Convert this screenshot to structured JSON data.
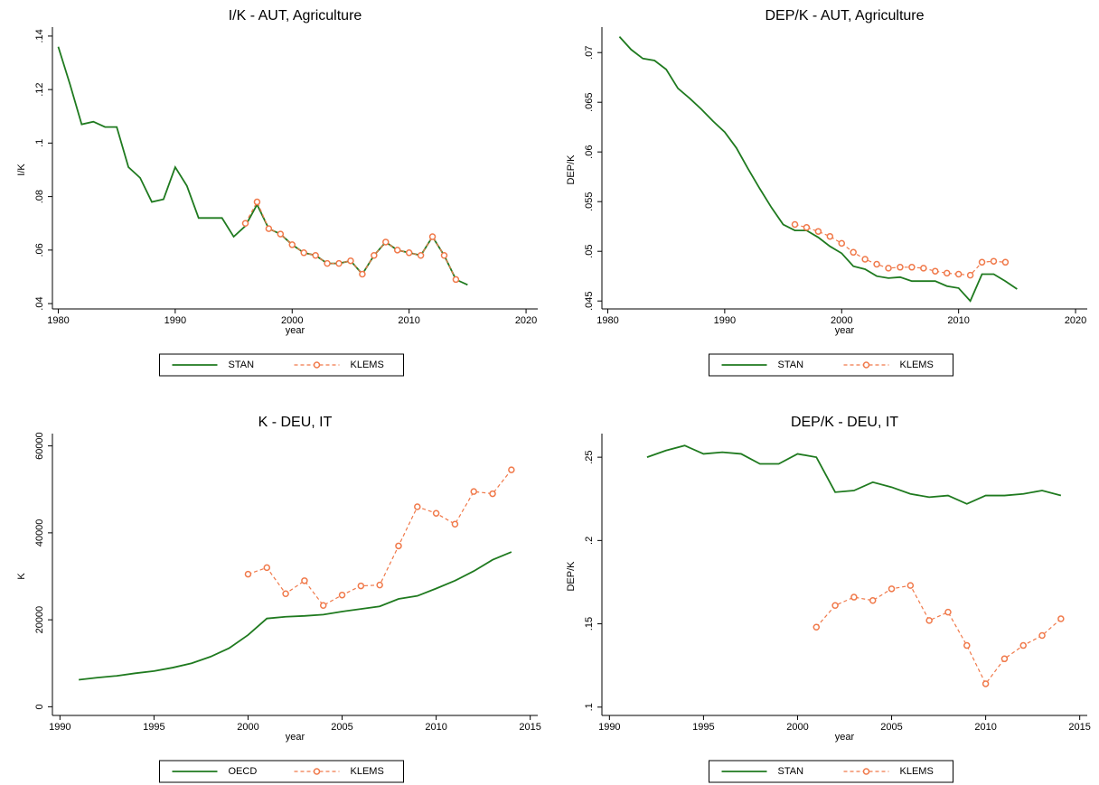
{
  "chart_data": [
    {
      "type": "line",
      "title": "I/K - AUT, Agriculture",
      "xlabel": "year",
      "ylabel": "I/K",
      "x": [
        1980,
        1981,
        1982,
        1983,
        1984,
        1985,
        1986,
        1987,
        1988,
        1989,
        1990,
        1991,
        1992,
        1993,
        1994,
        1995,
        1996,
        1997,
        1998,
        1999,
        2000,
        2001,
        2002,
        2003,
        2004,
        2005,
        2006,
        2007,
        2008,
        2009,
        2010,
        2011,
        2012,
        2013,
        2014,
        2015
      ],
      "series": [
        {
          "name": "STAN",
          "color": "#1f7a1f",
          "values": [
            0.136,
            0.122,
            0.107,
            0.108,
            0.106,
            0.106,
            0.091,
            0.087,
            0.078,
            0.079,
            0.091,
            0.084,
            0.072,
            0.072,
            0.072,
            0.065,
            0.069,
            0.077,
            0.068,
            0.066,
            0.062,
            0.059,
            0.058,
            0.055,
            0.055,
            0.056,
            0.051,
            0.058,
            0.063,
            0.06,
            0.059,
            0.058,
            0.065,
            0.058,
            0.049,
            0.047
          ]
        },
        {
          "name": "KLEMS",
          "color": "#f0794a",
          "values": [
            null,
            null,
            null,
            null,
            null,
            null,
            null,
            null,
            null,
            null,
            null,
            null,
            null,
            null,
            null,
            null,
            0.07,
            0.078,
            0.068,
            0.066,
            0.062,
            0.059,
            0.058,
            0.055,
            0.055,
            0.056,
            0.051,
            0.058,
            0.063,
            0.06,
            0.059,
            0.058,
            0.065,
            0.058,
            0.049,
            null
          ]
        }
      ],
      "xlim": [
        1979.5,
        2021
      ],
      "xticks": [
        1980,
        1990,
        2000,
        2010,
        2020
      ],
      "ylim": [
        0.038,
        0.142
      ],
      "yticks": [
        {
          "value": 0.04,
          "label": ".04"
        },
        {
          "value": 0.06,
          "label": ".06"
        },
        {
          "value": 0.08,
          "label": ".08"
        },
        {
          "value": 0.1,
          "label": ".1"
        },
        {
          "value": 0.12,
          "label": ".12"
        },
        {
          "value": 0.14,
          "label": ".14"
        }
      ]
    },
    {
      "type": "line",
      "title": "DEP/K - AUT, Agriculture",
      "xlabel": "year",
      "ylabel": "DEP/K",
      "x": [
        1981,
        1982,
        1983,
        1984,
        1985,
        1986,
        1987,
        1988,
        1989,
        1990,
        1991,
        1992,
        1993,
        1994,
        1995,
        1996,
        1997,
        1998,
        1999,
        2000,
        2001,
        2002,
        2003,
        2004,
        2005,
        2006,
        2007,
        2008,
        2009,
        2010,
        2011,
        2012,
        2013,
        2014,
        2015
      ],
      "series": [
        {
          "name": "STAN",
          "color": "#1f7a1f",
          "values": [
            0.0716,
            0.0703,
            0.0694,
            0.0692,
            0.0683,
            0.0664,
            0.0654,
            0.0643,
            0.0631,
            0.062,
            0.0604,
            0.0583,
            0.0563,
            0.0544,
            0.0527,
            0.0521,
            0.0521,
            0.0514,
            0.0505,
            0.0498,
            0.0485,
            0.0482,
            0.0475,
            0.0473,
            0.0474,
            0.047,
            0.047,
            0.047,
            0.0465,
            0.0463,
            0.045,
            0.0477,
            0.0477,
            0.047,
            0.0462
          ]
        },
        {
          "name": "KLEMS",
          "color": "#f0794a",
          "values": [
            null,
            null,
            null,
            null,
            null,
            null,
            null,
            null,
            null,
            null,
            null,
            null,
            null,
            null,
            null,
            0.0527,
            0.0524,
            0.052,
            0.0515,
            0.0508,
            0.0499,
            0.0492,
            0.0487,
            0.0483,
            0.0484,
            0.0484,
            0.0483,
            0.048,
            0.0478,
            0.0477,
            0.0476,
            0.0489,
            0.049,
            0.0489,
            null
          ]
        }
      ],
      "xlim": [
        1979.5,
        2021
      ],
      "xticks": [
        1980,
        1990,
        2000,
        2010,
        2020
      ],
      "ylim": [
        0.0442,
        0.0722
      ],
      "yticks": [
        {
          "value": 0.045,
          "label": ".045"
        },
        {
          "value": 0.05,
          "label": ".05"
        },
        {
          "value": 0.055,
          "label": ".055"
        },
        {
          "value": 0.06,
          "label": ".06"
        },
        {
          "value": 0.065,
          "label": ".065"
        },
        {
          "value": 0.07,
          "label": ".07"
        }
      ]
    },
    {
      "type": "line",
      "title": "K - DEU, IT",
      "xlabel": "year",
      "ylabel": "K",
      "x": [
        1991,
        1992,
        1993,
        1994,
        1995,
        1996,
        1997,
        1998,
        1999,
        2000,
        2001,
        2002,
        2003,
        2004,
        2005,
        2006,
        2007,
        2008,
        2009,
        2010,
        2011,
        2012,
        2013,
        2014
      ],
      "series": [
        {
          "name": "OECD",
          "color": "#1f7a1f",
          "values": [
            6200,
            6700,
            7100,
            7700,
            8200,
            9000,
            10000,
            11500,
            13500,
            16500,
            20300,
            20700,
            20900,
            21200,
            21900,
            22500,
            23100,
            24800,
            25500,
            27200,
            29000,
            31200,
            33800,
            35600
          ]
        },
        {
          "name": "KLEMS",
          "color": "#f0794a",
          "values": [
            null,
            null,
            null,
            null,
            null,
            null,
            null,
            null,
            null,
            30500,
            32000,
            26000,
            29000,
            23300,
            25700,
            27800,
            28000,
            37000,
            46000,
            44500,
            42000,
            49500,
            49000,
            54500
          ]
        }
      ],
      "xlim": [
        1989.6,
        2015.4
      ],
      "xticks": [
        1990,
        1995,
        2000,
        2005,
        2010,
        2015
      ],
      "ylim": [
        -2000,
        62000
      ],
      "yticks": [
        0,
        20000,
        40000,
        60000
      ]
    },
    {
      "type": "line",
      "title": "DEP/K - DEU, IT",
      "xlabel": "year",
      "ylabel": "DEP/K",
      "x": [
        1992,
        1993,
        1994,
        1995,
        1996,
        1997,
        1998,
        1999,
        2000,
        2001,
        2002,
        2003,
        2004,
        2005,
        2006,
        2007,
        2008,
        2009,
        2010,
        2011,
        2012,
        2013,
        2014
      ],
      "series": [
        {
          "name": "STAN",
          "color": "#1f7a1f",
          "values": [
            0.25,
            0.254,
            0.257,
            0.252,
            0.253,
            0.252,
            0.246,
            0.246,
            0.252,
            0.25,
            0.229,
            0.23,
            0.235,
            0.232,
            0.228,
            0.226,
            0.227,
            0.222,
            0.227,
            0.227,
            0.228,
            0.23,
            0.227
          ]
        },
        {
          "name": "KLEMS",
          "color": "#f0794a",
          "values": [
            null,
            null,
            null,
            null,
            null,
            null,
            null,
            null,
            null,
            0.148,
            0.161,
            0.166,
            0.164,
            0.171,
            0.173,
            0.152,
            0.157,
            0.137,
            0.114,
            0.129,
            0.137,
            0.143,
            0.153
          ]
        }
      ],
      "xlim": [
        1989.6,
        2015.4
      ],
      "xticks": [
        1990,
        1995,
        2000,
        2005,
        2010,
        2015
      ],
      "ylim": [
        0.095,
        0.262
      ],
      "yticks": [
        {
          "value": 0.1,
          "label": ".1"
        },
        {
          "value": 0.15,
          "label": ".15"
        },
        {
          "value": 0.2,
          "label": ".2"
        },
        {
          "value": 0.25,
          "label": ".25"
        }
      ]
    }
  ]
}
